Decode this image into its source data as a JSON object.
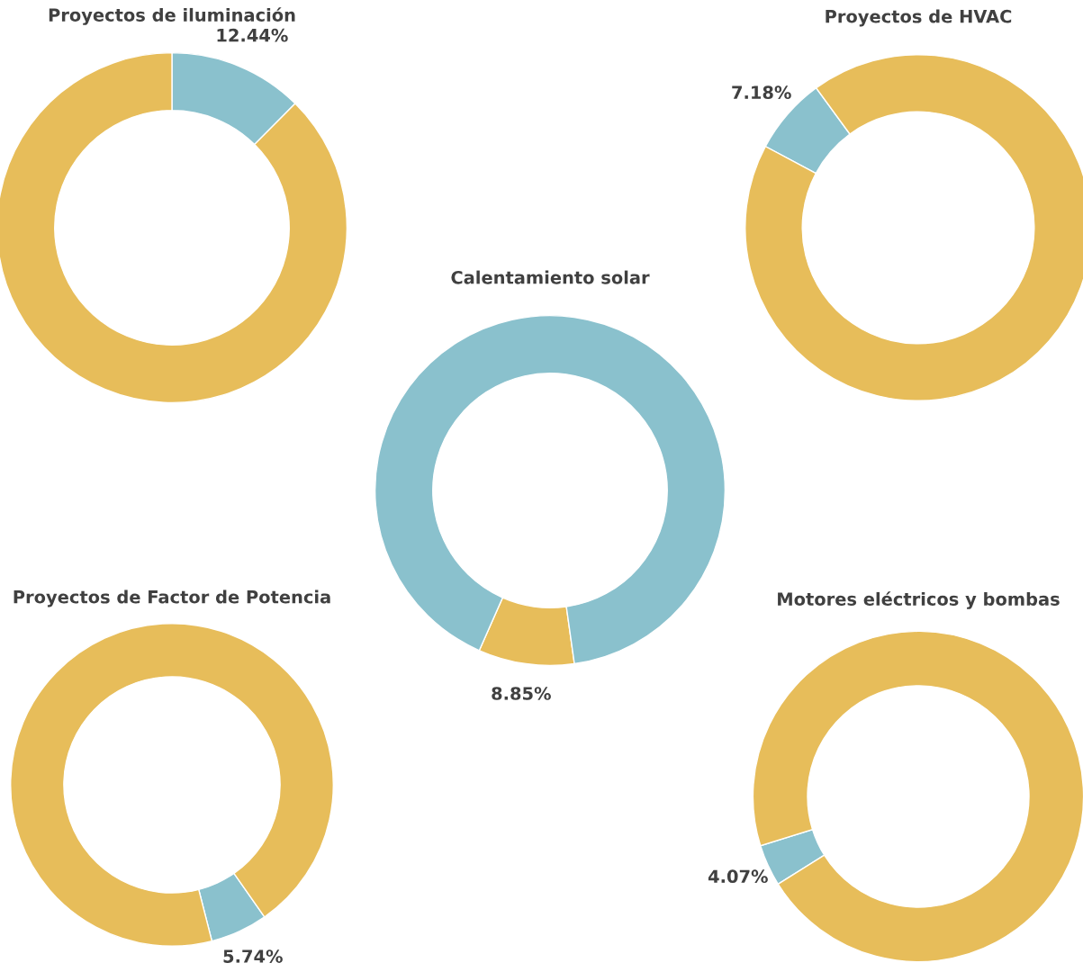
{
  "chart_data": [
    {
      "type": "donut",
      "title": "Proyectos de iluminación",
      "categories": [
        null,
        null
      ],
      "values": [
        12.44,
        87.56
      ],
      "colors": [
        "#8ac1cd",
        "#e7bd5a"
      ],
      "value_labels": [
        "12.44%",
        null
      ]
    },
    {
      "type": "donut",
      "title": "Proyectos de HVAC",
      "categories": [
        null,
        null
      ],
      "values": [
        7.18,
        92.82
      ],
      "colors": [
        "#8ac1cd",
        "#e7bd5a"
      ],
      "value_labels": [
        "7.18%",
        null
      ]
    },
    {
      "type": "donut",
      "title": "Calentamiento solar",
      "categories": [
        null,
        null
      ],
      "values": [
        8.85,
        91.15
      ],
      "colors": [
        "#e7bd5a",
        "#8ac1cd"
      ],
      "value_labels": [
        "8.85%",
        null
      ]
    },
    {
      "type": "donut",
      "title": "Proyectos de Factor de Potencia",
      "categories": [
        null,
        null
      ],
      "values": [
        5.74,
        94.26
      ],
      "colors": [
        "#8ac1cd",
        "#e7bd5a"
      ],
      "value_labels": [
        "5.74%",
        null
      ]
    },
    {
      "type": "donut",
      "title": "Motores eléctricos y bombas",
      "categories": [
        null,
        null
      ],
      "values": [
        4.07,
        95.93
      ],
      "colors": [
        "#8ac1cd",
        "#e7bd5a"
      ],
      "value_labels": [
        "4.07%",
        null
      ]
    }
  ]
}
